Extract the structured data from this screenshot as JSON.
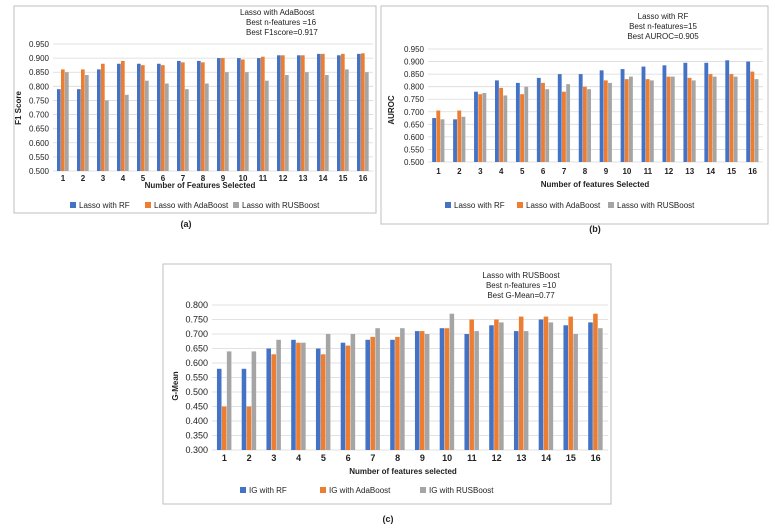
{
  "colors": {
    "s1": "#4472C4",
    "s2": "#ED7D31",
    "s3": "#A5A5A5",
    "grid": "#d9d9d9",
    "frame": "#bfbfbf"
  },
  "chart_data": [
    {
      "id": "a",
      "type": "bar",
      "panel_label": "(a)",
      "annotation": [
        "Lasso with AdaBoost",
        "Best n-features =16",
        "Best  F1score=0.917"
      ],
      "xlabel": "Number of Features  Selected",
      "ylabel": "F1 Score",
      "ylim": [
        0.5,
        0.95
      ],
      "yticks": [
        "0.500",
        "0.550",
        "0.600",
        "0.650",
        "0.700",
        "0.750",
        "0.800",
        "0.850",
        "0.900",
        "0.950"
      ],
      "categories": [
        "1",
        "2",
        "3",
        "4",
        "5",
        "6",
        "7",
        "8",
        "9",
        "10",
        "11",
        "12",
        "13",
        "14",
        "15",
        "16"
      ],
      "series": [
        {
          "name": "Lasso with RF",
          "values": [
            0.79,
            0.79,
            0.86,
            0.88,
            0.88,
            0.88,
            0.89,
            0.89,
            0.9,
            0.9,
            0.9,
            0.91,
            0.91,
            0.915,
            0.91,
            0.915
          ]
        },
        {
          "name": "Lasso with AdaBoost",
          "values": [
            0.86,
            0.86,
            0.88,
            0.89,
            0.875,
            0.875,
            0.885,
            0.885,
            0.9,
            0.895,
            0.905,
            0.91,
            0.91,
            0.915,
            0.915,
            0.917
          ]
        },
        {
          "name": "Lasso with RUSBoost",
          "values": [
            0.85,
            0.84,
            0.75,
            0.77,
            0.82,
            0.81,
            0.79,
            0.81,
            0.85,
            0.85,
            0.82,
            0.84,
            0.85,
            0.84,
            0.86,
            0.85
          ]
        }
      ]
    },
    {
      "id": "b",
      "type": "bar",
      "panel_label": "(b)",
      "annotation": [
        "Lasso with RF",
        "Best n-features=15",
        "Best AUROC=0.905"
      ],
      "xlabel": "Number of features  Selected",
      "ylabel": "AUROC",
      "ylim": [
        0.5,
        0.95
      ],
      "yticks": [
        "0.500",
        "0.550",
        "0.600",
        "0.650",
        "0.700",
        "0.750",
        "0.800",
        "0.850",
        "0.900",
        "0.950"
      ],
      "categories": [
        "1",
        "2",
        "3",
        "4",
        "5",
        "6",
        "7",
        "8",
        "9",
        "10",
        "11",
        "12",
        "13",
        "14",
        "15",
        "16"
      ],
      "series": [
        {
          "name": "Lasso with RF",
          "values": [
            0.675,
            0.67,
            0.78,
            0.825,
            0.815,
            0.835,
            0.85,
            0.85,
            0.865,
            0.87,
            0.88,
            0.885,
            0.895,
            0.895,
            0.905,
            0.9
          ]
        },
        {
          "name": "Lasso with AdaBoost",
          "values": [
            0.705,
            0.705,
            0.77,
            0.795,
            0.77,
            0.815,
            0.78,
            0.8,
            0.825,
            0.83,
            0.83,
            0.84,
            0.835,
            0.85,
            0.85,
            0.86
          ]
        },
        {
          "name": "Lasso with RUSBoost",
          "values": [
            0.67,
            0.68,
            0.775,
            0.765,
            0.8,
            0.79,
            0.81,
            0.79,
            0.815,
            0.84,
            0.825,
            0.84,
            0.825,
            0.84,
            0.84,
            0.83
          ]
        }
      ]
    },
    {
      "id": "c",
      "type": "bar",
      "panel_label": "(c)",
      "annotation": [
        "Lasso with RUSBoost",
        "Best n-features  =10",
        "Best G-Mean=0.77"
      ],
      "xlabel": "Number of features selected",
      "ylabel": "G-Mean",
      "ylim": [
        0.3,
        0.8
      ],
      "yticks": [
        "0.300",
        "0.350",
        "0.400",
        "0.450",
        "0.500",
        "0.550",
        "0.600",
        "0.650",
        "0.700",
        "0.750",
        "0.800"
      ],
      "categories": [
        "1",
        "2",
        "3",
        "4",
        "5",
        "6",
        "7",
        "8",
        "9",
        "10",
        "11",
        "12",
        "13",
        "14",
        "15",
        "16"
      ],
      "series": [
        {
          "name": "IG with RF",
          "values": [
            0.58,
            0.58,
            0.65,
            0.68,
            0.65,
            0.67,
            0.68,
            0.68,
            0.71,
            0.72,
            0.7,
            0.73,
            0.71,
            0.75,
            0.73,
            0.74
          ]
        },
        {
          "name": "IG with AdaBoost",
          "values": [
            0.45,
            0.45,
            0.63,
            0.67,
            0.63,
            0.66,
            0.69,
            0.69,
            0.71,
            0.72,
            0.75,
            0.75,
            0.76,
            0.76,
            0.76,
            0.77
          ]
        },
        {
          "name": "IG with RUSBoost",
          "values": [
            0.64,
            0.64,
            0.68,
            0.67,
            0.7,
            0.7,
            0.72,
            0.72,
            0.7,
            0.77,
            0.71,
            0.74,
            0.71,
            0.74,
            0.7,
            0.72
          ]
        }
      ]
    }
  ]
}
